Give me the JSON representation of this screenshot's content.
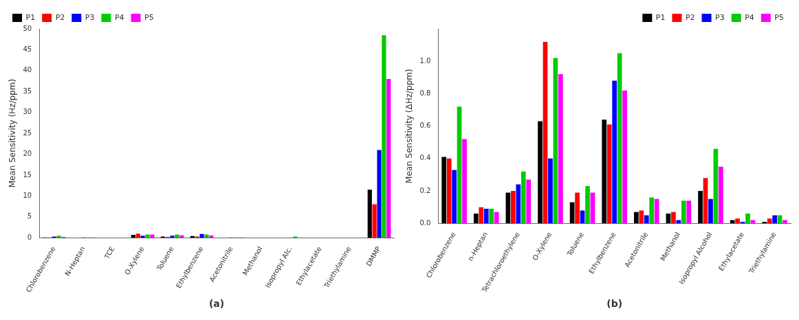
{
  "chart_data": [
    {
      "type": "bar",
      "xlabel": "(a)",
      "ylabel": "Mean Sensitivity (Hz/ppm)",
      "categories": [
        "Chlorobenzene",
        "N-Heptan",
        "TCE",
        "O-Xylene",
        "Toluene",
        "Ethylbenzene",
        "Acetonitrile",
        "Methanol",
        "Isopropyl Alc.",
        "Ethylacetate",
        "Triethylamine",
        "DMMP"
      ],
      "series": [
        {
          "name": "P1",
          "color": "#000000",
          "values": [
            0.1,
            0.05,
            0.0,
            0.7,
            0.3,
            0.4,
            0.05,
            0.0,
            0.0,
            0.0,
            0.0,
            11.5
          ]
        },
        {
          "name": "P2",
          "color": "#ff0000",
          "values": [
            0.1,
            0.05,
            0.0,
            1.0,
            0.2,
            0.3,
            0.05,
            0.0,
            0.0,
            0.0,
            0.0,
            8.0
          ]
        },
        {
          "name": "P3",
          "color": "#0000ff",
          "values": [
            0.3,
            0.1,
            0.0,
            0.5,
            0.5,
            0.9,
            0.1,
            0.0,
            0.0,
            0.0,
            0.0,
            21.0
          ]
        },
        {
          "name": "P4",
          "color": "#00cc00",
          "values": [
            0.5,
            0.1,
            0.0,
            0.8,
            0.8,
            0.8,
            0.1,
            0.0,
            0.3,
            0.0,
            0.0,
            48.5
          ]
        },
        {
          "name": "P5",
          "color": "#ff00ff",
          "values": [
            0.2,
            0.1,
            0.0,
            0.8,
            0.6,
            0.6,
            0.1,
            0.0,
            0.0,
            0.0,
            0.0,
            38.0
          ]
        }
      ],
      "ylim": [
        0,
        50
      ],
      "yticks": [
        0,
        5,
        10,
        15,
        20,
        25,
        30,
        35,
        40,
        45,
        50
      ],
      "grid": false,
      "legend": "upper left"
    },
    {
      "type": "bar",
      "xlabel": "(b)",
      "ylabel": "Mean Sensitivity (ΔHz/ppm)",
      "categories": [
        "Chlorobenzene",
        "n-Heptan",
        "Tetrachloroethylene",
        "O-Xylene",
        "Toluene",
        "Ethylbenzene",
        "Acetonitrile",
        "Methanol",
        "Isopropyl Alcohol",
        "Ethylacetate",
        "Triethylamine"
      ],
      "series": [
        {
          "name": "P1",
          "color": "#000000",
          "values": [
            0.41,
            0.06,
            0.19,
            0.63,
            0.13,
            0.64,
            0.07,
            0.06,
            0.2,
            0.02,
            0.01
          ]
        },
        {
          "name": "P2",
          "color": "#ff0000",
          "values": [
            0.4,
            0.1,
            0.2,
            1.12,
            0.19,
            0.61,
            0.08,
            0.07,
            0.28,
            0.03,
            0.03
          ]
        },
        {
          "name": "P3",
          "color": "#0000ff",
          "values": [
            0.33,
            0.09,
            0.24,
            0.4,
            0.08,
            0.88,
            0.05,
            0.02,
            0.15,
            0.01,
            0.05
          ]
        },
        {
          "name": "P4",
          "color": "#00cc00",
          "values": [
            0.72,
            0.09,
            0.32,
            1.02,
            0.23,
            1.05,
            0.16,
            0.14,
            0.46,
            0.06,
            0.05
          ]
        },
        {
          "name": "P5",
          "color": "#ff00ff",
          "values": [
            0.52,
            0.07,
            0.27,
            0.92,
            0.19,
            0.82,
            0.15,
            0.14,
            0.35,
            0.02,
            0.02
          ]
        }
      ],
      "ylim": [
        0,
        1.2
      ],
      "yticks": [
        {
          "value": 0,
          "label": "0.0"
        },
        0.2,
        0.4,
        0.6,
        0.8,
        {
          "value": 1,
          "label": "1.0"
        }
      ],
      "grid": false,
      "legend": "upper right"
    }
  ]
}
